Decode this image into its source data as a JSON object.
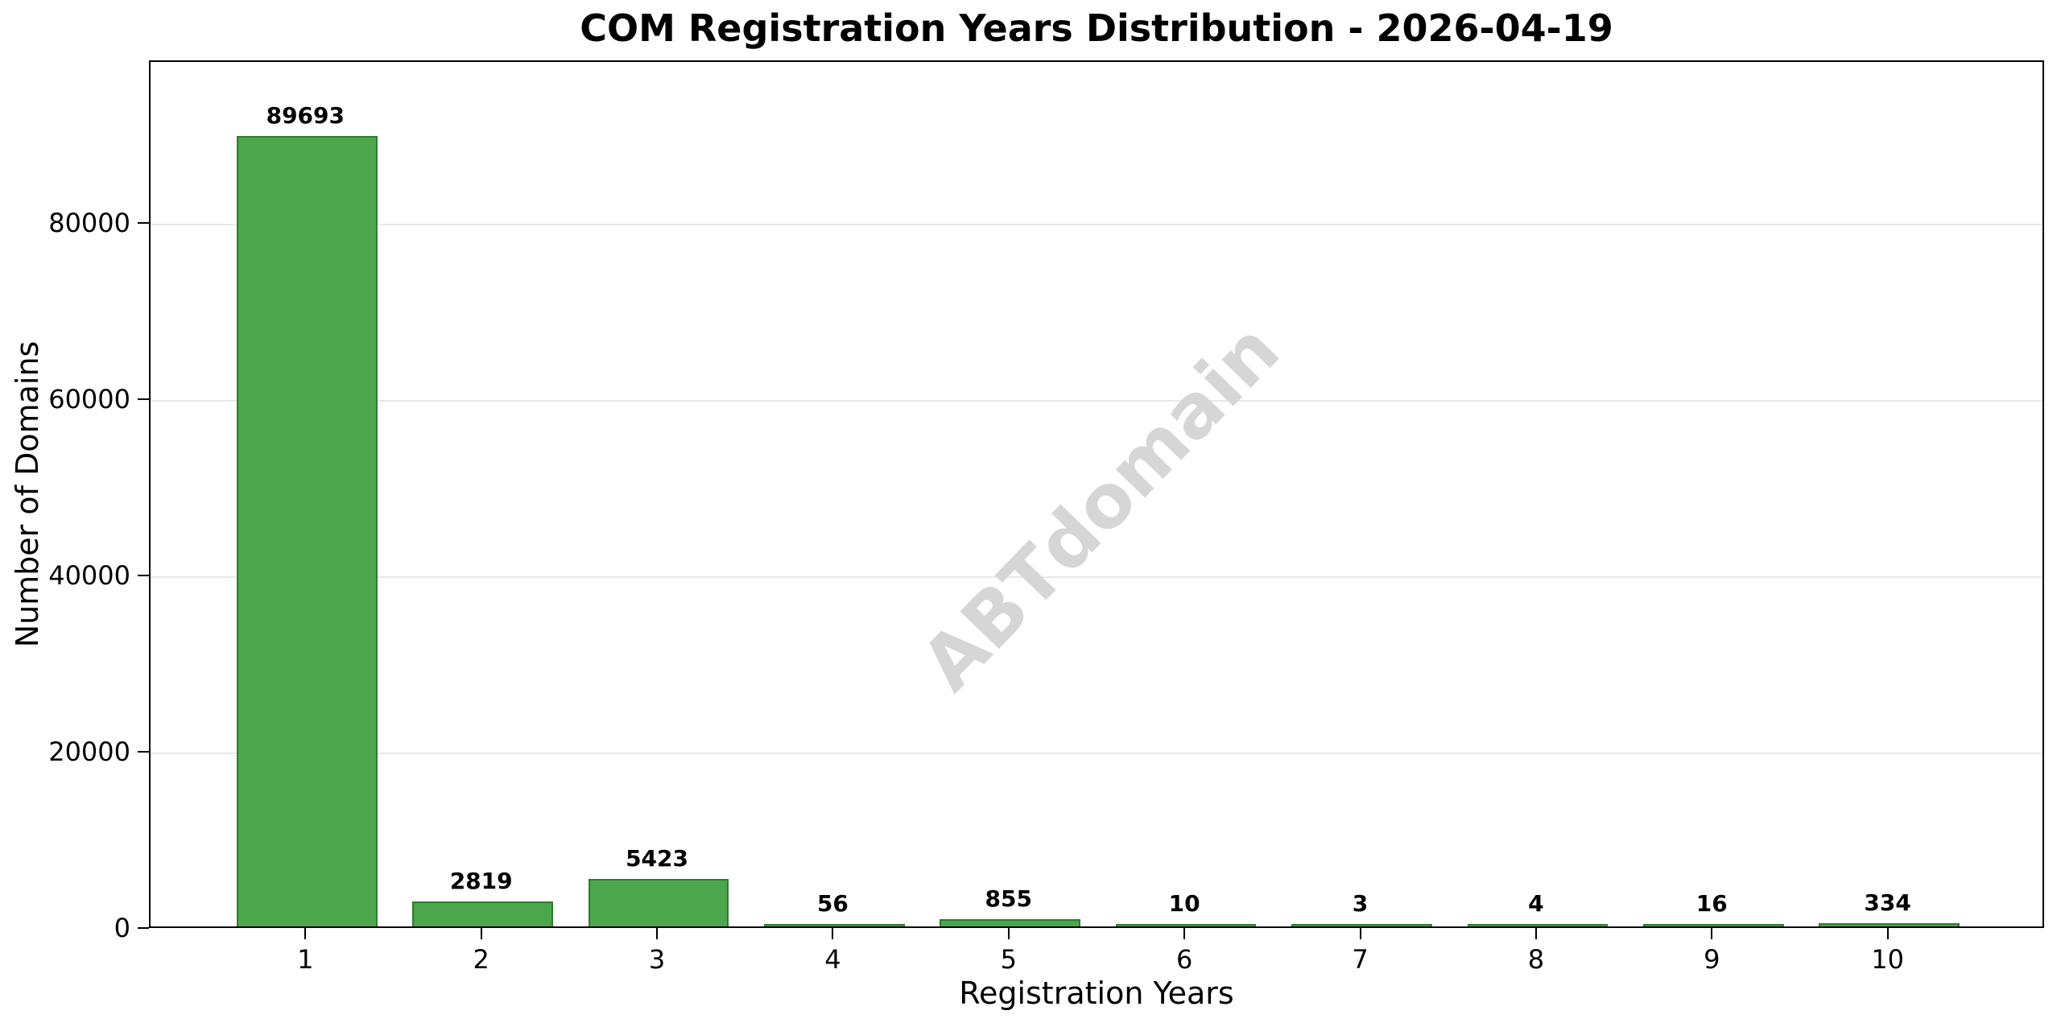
{
  "chart_data": {
    "type": "bar",
    "title": "COM Registration Years Distribution - 2026-04-19",
    "xlabel": "Registration Years",
    "ylabel": "Number of Domains",
    "categories": [
      "1",
      "2",
      "3",
      "4",
      "5",
      "6",
      "7",
      "8",
      "9",
      "10"
    ],
    "values": [
      89693,
      2819,
      5423,
      56,
      855,
      10,
      3,
      4,
      16,
      334
    ],
    "value_labels": [
      "89693",
      "2819",
      "5423",
      "56",
      "855",
      "10",
      "3",
      "4",
      "16",
      "334"
    ],
    "yticks": [
      0,
      20000,
      40000,
      60000,
      80000
    ],
    "ytick_labels": [
      "0",
      "20000",
      "40000",
      "60000",
      "80000"
    ],
    "ylim": [
      0,
      98500
    ],
    "grid": "horizontal-only",
    "legend": "none",
    "bar_fill_color": "#4ba64c",
    "bar_edge_color": "#2e7d2e",
    "gridline_color": "#e8e8e8",
    "watermark": "ABTdomain",
    "watermark_color": "#d6d6d6"
  }
}
